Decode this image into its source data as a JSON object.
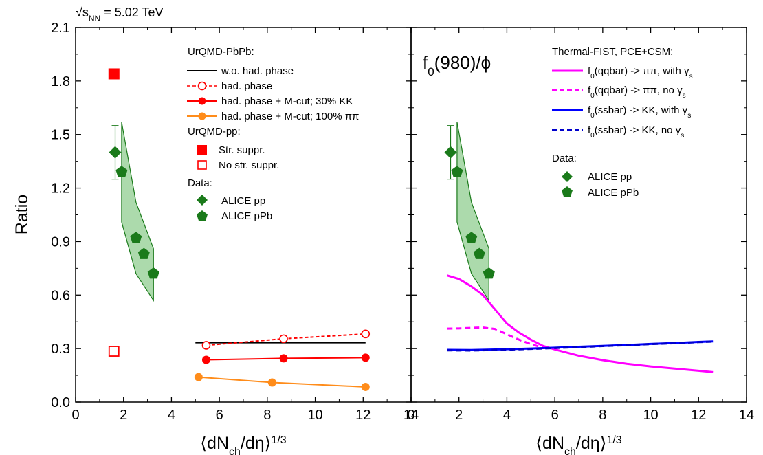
{
  "header": {
    "energy_label": "√s",
    "energy_sub": "NN",
    "energy_value": " = 5.02 TeV"
  },
  "chart_data": [
    {
      "type": "line",
      "panel": "left",
      "ylabel": "Ratio",
      "xlabel": {
        "pre": "⟨dN",
        "sub": "ch",
        "mid": "/dη⟩",
        "sup": "1/3"
      },
      "xlim": [
        0,
        14
      ],
      "ylim": [
        0,
        2.1
      ],
      "xticks": [
        "0",
        "2",
        "4",
        "6",
        "8",
        "10",
        "12",
        "14"
      ],
      "yticks": [
        "0.0",
        "0.3",
        "0.6",
        "0.9",
        "1.2",
        "1.5",
        "1.8",
        "2.1"
      ],
      "legend": {
        "heading_pbpb": "UrQMD-PbPb:",
        "heading_pp": "UrQMD-pp:",
        "heading_data": "Data:",
        "entries": {
          "wo": "w.o. had. phase",
          "had": "had. phase",
          "mcut30": "had. phase + M-cut; 30% KK",
          "mcut100": "had. phase + M-cut; 100% ππ",
          "str": "Str. suppr.",
          "nostr": "No str. suppr.",
          "alice_pp": "ALICE pp",
          "alice_ppb": "ALICE pPb"
        }
      },
      "series": [
        {
          "key": "wo",
          "color": "#000000",
          "style": "solid",
          "marker": "none",
          "x": [
            5.0,
            12.1
          ],
          "y": [
            0.333,
            0.333
          ]
        },
        {
          "key": "had",
          "color": "#ff0000",
          "style": "dashed",
          "marker": "open-circle",
          "x": [
            5.45,
            8.68,
            12.1
          ],
          "y": [
            0.318,
            0.355,
            0.382
          ]
        },
        {
          "key": "mcut30",
          "color": "#ff0000",
          "style": "solid",
          "marker": "filled-circle",
          "x": [
            5.45,
            8.68,
            12.1
          ],
          "y": [
            0.237,
            0.245,
            0.249
          ]
        },
        {
          "key": "mcut100",
          "color": "#ff8c1a",
          "style": "solid",
          "marker": "filled-circle",
          "x": [
            5.13,
            8.2,
            12.1
          ],
          "y": [
            0.14,
            0.11,
            0.085
          ]
        },
        {
          "key": "str",
          "color": "#ff0000",
          "style": "none",
          "marker": "filled-square",
          "x": [
            1.6
          ],
          "y": [
            1.84
          ]
        },
        {
          "key": "nostr",
          "color": "#ff0000",
          "style": "none",
          "marker": "open-square",
          "x": [
            1.6
          ],
          "y": [
            0.285
          ]
        },
        {
          "key": "alice_pp",
          "color": "#1a7a1a",
          "style": "none",
          "marker": "diamond",
          "x": [
            1.65
          ],
          "y": [
            1.4
          ],
          "yerr_low": [
            1.25
          ],
          "yerr_high": [
            1.55
          ]
        },
        {
          "key": "alice_ppb",
          "color": "#1a7a1a",
          "style": "none",
          "marker": "pentagon",
          "x": [
            1.92,
            2.52,
            2.85,
            3.25
          ],
          "y": [
            1.29,
            0.92,
            0.83,
            0.72
          ]
        }
      ],
      "band": {
        "color": "#1a7a1a",
        "fill": "#9dd39d",
        "x_upper": [
          1.92,
          2.52,
          3.25
        ],
        "y_upper": [
          1.57,
          1.12,
          0.86
        ],
        "x_lower": [
          1.92,
          2.52,
          3.25
        ],
        "y_lower": [
          1.01,
          0.72,
          0.57
        ]
      }
    },
    {
      "type": "line",
      "panel": "right",
      "title": {
        "pre": "f",
        "sub": "0",
        "post": "(980)/ϕ"
      },
      "xlabel": {
        "pre": "⟨dN",
        "sub": "ch",
        "mid": "/dη⟩",
        "sup": "1/3"
      },
      "xlim": [
        0,
        14
      ],
      "ylim": [
        0,
        2.1
      ],
      "xticks": [
        "0",
        "2",
        "4",
        "6",
        "8",
        "10",
        "12",
        "14"
      ],
      "legend": {
        "heading_model": "Thermal-FIST, PCE+CSM:",
        "heading_data": "Data:",
        "entries": {
          "qq_g": {
            "pre": "f",
            "sub": "0",
            "mid": "(qqbar) -> ππ, with γ",
            "sub2": "s"
          },
          "qq_ng": {
            "pre": "f",
            "sub": "0",
            "mid": "(qqbar) -> ππ, no γ",
            "sub2": "s"
          },
          "ss_g": {
            "pre": "f",
            "sub": "0",
            "mid": "(ssbar) -> KK, with γ",
            "sub2": "s"
          },
          "ss_ng": {
            "pre": "f",
            "sub": "0",
            "mid": "(ssbar) -> KK, no γ",
            "sub2": "s"
          },
          "alice_pp": "ALICE pp",
          "alice_ppb": "ALICE pPb"
        }
      },
      "series": [
        {
          "key": "qq_g",
          "color": "#ff00ff",
          "style": "solid",
          "marker": "none",
          "x": [
            1.5,
            2.0,
            2.5,
            3.0,
            3.5,
            4.0,
            4.5,
            5.0,
            5.5,
            6.0,
            7.0,
            8.0,
            9.0,
            10.0,
            11.0,
            12.0,
            12.6
          ],
          "y": [
            0.71,
            0.69,
            0.65,
            0.6,
            0.52,
            0.44,
            0.39,
            0.35,
            0.315,
            0.295,
            0.26,
            0.235,
            0.215,
            0.2,
            0.188,
            0.176,
            0.168
          ]
        },
        {
          "key": "qq_ng",
          "color": "#ff00ff",
          "style": "dashed",
          "marker": "none",
          "x": [
            1.5,
            2.0,
            2.5,
            3.0,
            3.5,
            4.0,
            4.5,
            5.0,
            5.5,
            5.8
          ],
          "y": [
            0.412,
            0.413,
            0.416,
            0.418,
            0.41,
            0.38,
            0.35,
            0.325,
            0.305,
            0.298
          ]
        },
        {
          "key": "ss_g",
          "color": "#0000ff",
          "style": "solid",
          "marker": "none",
          "x": [
            1.5,
            2.5,
            3.5,
            5.0,
            6.0,
            7.0,
            8.0,
            9.0,
            10.0,
            11.0,
            12.0,
            12.6
          ],
          "y": [
            0.293,
            0.292,
            0.295,
            0.3,
            0.305,
            0.31,
            0.315,
            0.32,
            0.326,
            0.331,
            0.337,
            0.34
          ]
        },
        {
          "key": "ss_ng",
          "color": "#0000cc",
          "style": "dashed",
          "marker": "none",
          "x": [
            1.5,
            2.5,
            3.5,
            5.0,
            6.0,
            7.0,
            8.0,
            9.0,
            10.0,
            11.0,
            12.0,
            12.6
          ],
          "y": [
            0.29,
            0.289,
            0.292,
            0.298,
            0.303,
            0.308,
            0.314,
            0.319,
            0.325,
            0.33,
            0.336,
            0.339
          ]
        },
        {
          "key": "alice_pp",
          "color": "#1a7a1a",
          "style": "none",
          "marker": "diamond",
          "x": [
            1.65
          ],
          "y": [
            1.4
          ],
          "yerr_low": [
            1.25
          ],
          "yerr_high": [
            1.55
          ]
        },
        {
          "key": "alice_ppb",
          "color": "#1a7a1a",
          "style": "none",
          "marker": "pentagon",
          "x": [
            1.92,
            2.52,
            2.85,
            3.25
          ],
          "y": [
            1.29,
            0.92,
            0.83,
            0.72
          ]
        }
      ],
      "band": {
        "color": "#1a7a1a",
        "fill": "#9dd39d",
        "x_upper": [
          1.92,
          2.52,
          3.25
        ],
        "y_upper": [
          1.57,
          1.12,
          0.86
        ],
        "x_lower": [
          1.92,
          2.52,
          3.25
        ],
        "y_lower": [
          1.01,
          0.72,
          0.57
        ]
      }
    }
  ]
}
